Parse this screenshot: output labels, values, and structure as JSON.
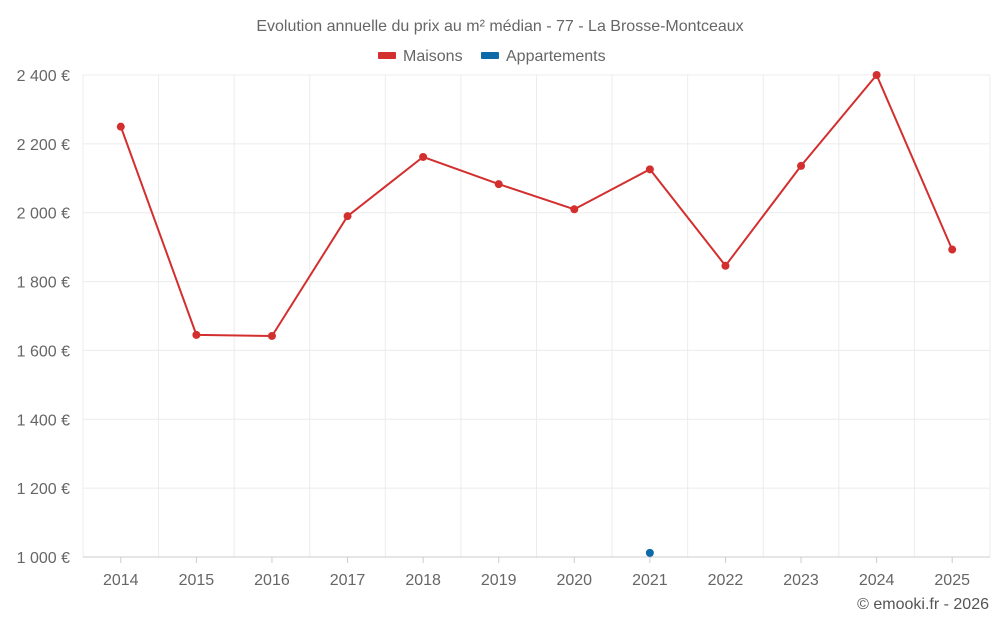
{
  "chart_data": {
    "type": "line",
    "title": "Evolution annuelle du prix au m² médian - 77 - La Brosse-Montceaux",
    "x": [
      "2014",
      "2015",
      "2016",
      "2017",
      "2018",
      "2019",
      "2020",
      "2021",
      "2022",
      "2023",
      "2024",
      "2025"
    ],
    "series": [
      {
        "name": "Maisons",
        "color": "#d32f2f",
        "values": [
          2250,
          1645,
          1642,
          1990,
          2162,
          2083,
          2010,
          2126,
          1846,
          2136,
          2400,
          1893
        ]
      },
      {
        "name": "Appartements",
        "color": "#0d6aa8",
        "values": [
          null,
          null,
          null,
          null,
          null,
          null,
          null,
          1012,
          null,
          null,
          null,
          null
        ]
      }
    ],
    "ylim": [
      1000,
      2400
    ],
    "yticks": [
      1000,
      1200,
      1400,
      1600,
      1800,
      2000,
      2200,
      2400
    ],
    "ytick_labels": [
      "1 000 €",
      "1 200 €",
      "1 400 €",
      "1 600 €",
      "1 800 €",
      "2 000 €",
      "2 200 €",
      "2 400 €"
    ],
    "xlabel": "",
    "ylabel": "",
    "grid": true,
    "legend_position": "top-center"
  },
  "credit": "© emooki.fr - 2026"
}
